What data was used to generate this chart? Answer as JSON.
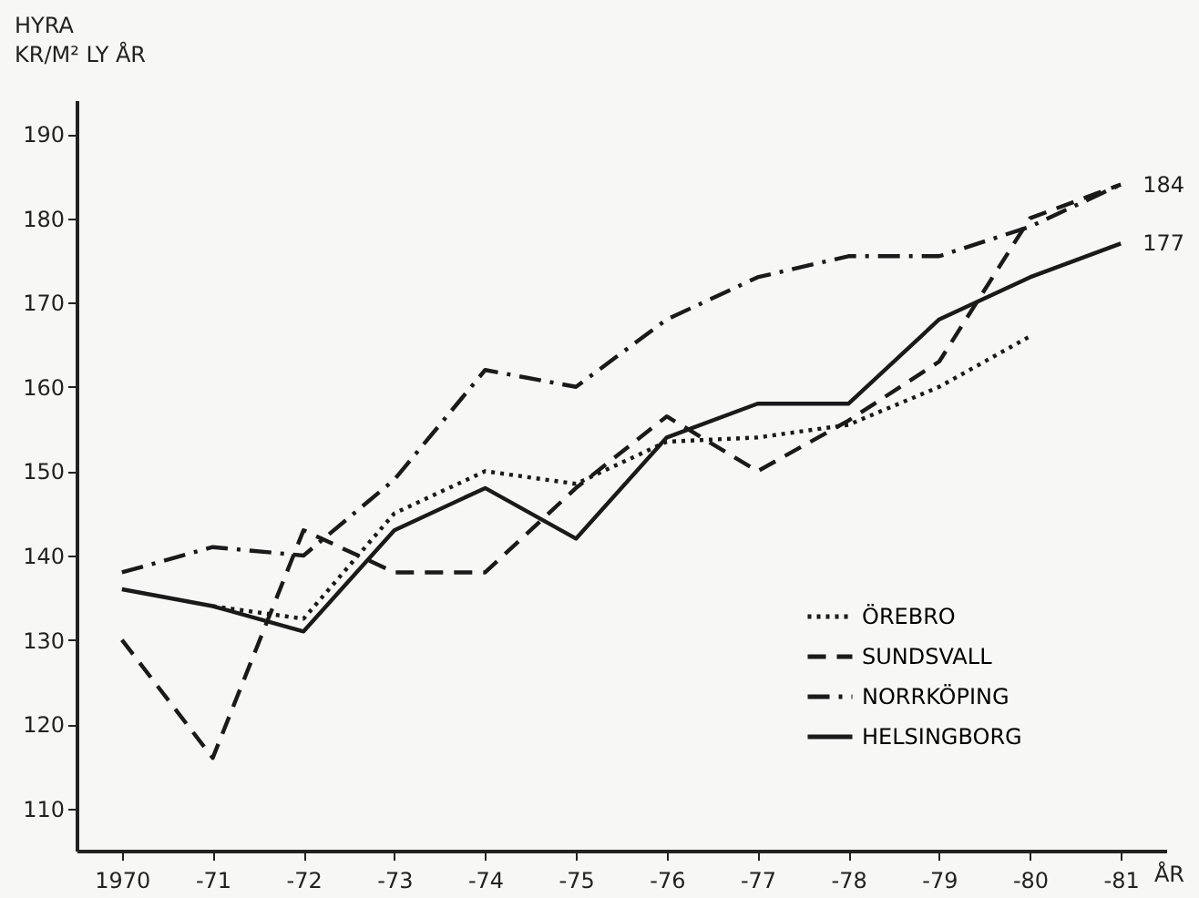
{
  "chart_data": {
    "type": "line",
    "ylabel": "HYRA\nKR/M² LY ÅR",
    "xlabel": "ÅR",
    "categories": [
      "1970",
      "-71",
      "-72",
      "-73",
      "-74",
      "-75",
      "-76",
      "-77",
      "-78",
      "-79",
      "-80",
      "-81"
    ],
    "ylim": [
      105,
      194
    ],
    "yticks": [
      110,
      120,
      130,
      140,
      150,
      160,
      170,
      180,
      190
    ],
    "series": [
      {
        "name": "ÖREBRO",
        "color": "#1a1a1a",
        "line_style": "dotted",
        "values": [
          null,
          134,
          132.5,
          145,
          150,
          148.5,
          153.5,
          154,
          155.5,
          160,
          166,
          null
        ]
      },
      {
        "name": "SUNDSVALL",
        "color": "#1a1a1a",
        "line_style": "dashed",
        "values": [
          130,
          116,
          143,
          138,
          138,
          148,
          156.5,
          150,
          156,
          163,
          180,
          184
        ]
      },
      {
        "name": "NORRKÖPING",
        "color": "#1a1a1a",
        "line_style": "dashdot",
        "values": [
          138,
          141,
          140,
          149,
          162,
          160,
          168,
          173,
          175.5,
          175.5,
          179,
          184
        ]
      },
      {
        "name": "HELSINGBORG",
        "color": "#1a1a1a",
        "line_style": "solid",
        "values": [
          136,
          134,
          131,
          143,
          148,
          142,
          154,
          158,
          158,
          168,
          173,
          177
        ]
      }
    ],
    "annotations": [
      {
        "text": "184",
        "x": "-81",
        "y": 184
      },
      {
        "text": "177",
        "x": "-81",
        "y": 177
      }
    ],
    "legend": "bottom right",
    "grid": false
  }
}
